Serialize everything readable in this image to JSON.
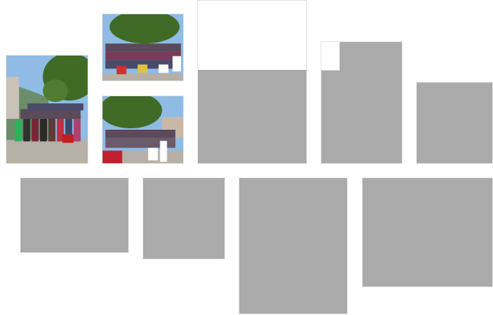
{
  "colors": {
    "placeholder": "#aaaaaa",
    "background": "#ffffff",
    "border": "#e3e3e3",
    "sky": "#9bc1e2",
    "foliage": "#3f6b26",
    "ground": "#b7b0a6"
  },
  "gallery": {
    "tiles": [
      {
        "kind": "photo",
        "content": "group-photo-icon"
      },
      {
        "kind": "photo",
        "content": "group-photo-icon"
      },
      {
        "kind": "photo",
        "content": "group-photo-icon"
      },
      {
        "kind": "placeholder",
        "state": "loading"
      },
      {
        "kind": "placeholder",
        "state": "loading"
      },
      {
        "kind": "placeholder",
        "state": "loading"
      },
      {
        "kind": "placeholder",
        "state": "loading"
      },
      {
        "kind": "placeholder",
        "state": "loading"
      },
      {
        "kind": "placeholder",
        "state": "loading"
      },
      {
        "kind": "placeholder",
        "state": "loading"
      }
    ]
  }
}
